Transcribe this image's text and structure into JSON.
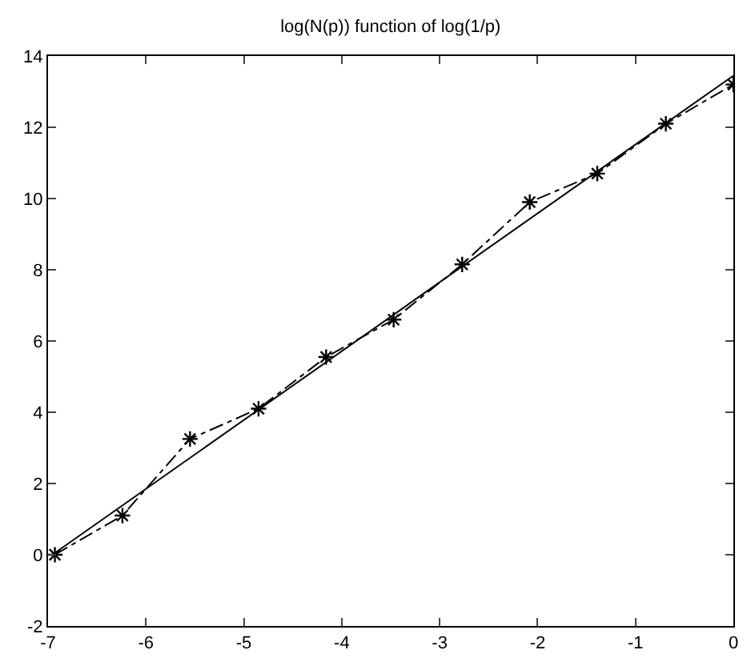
{
  "chart_data": {
    "type": "line",
    "title": "log(N(p)) function of log(1/p)",
    "xlim": [
      -7,
      0
    ],
    "xticks": [
      -7,
      -6,
      -5,
      -4,
      -3,
      -2,
      -1,
      0
    ],
    "ylim": [
      -2,
      14
    ],
    "yticks": [
      -2,
      0,
      2,
      4,
      6,
      8,
      10,
      12,
      14
    ],
    "series": [
      {
        "color": "#000000",
        "marker": "cross",
        "line_style": "dashdot",
        "x": [
          -6.93,
          -6.24,
          -5.55,
          -4.85,
          -4.16,
          -3.47,
          -2.77,
          -2.08,
          -1.39,
          -0.69,
          0
        ],
        "values": [
          0,
          1.1,
          3.25,
          4.1,
          5.55,
          6.6,
          8.15,
          9.9,
          10.7,
          12.1,
          13.2
        ]
      },
      {
        "color": "#000000",
        "marker": "none",
        "line_style": "solid",
        "x": [
          -6.93,
          0
        ],
        "values": [
          0.05,
          13.45
        ]
      }
    ]
  }
}
